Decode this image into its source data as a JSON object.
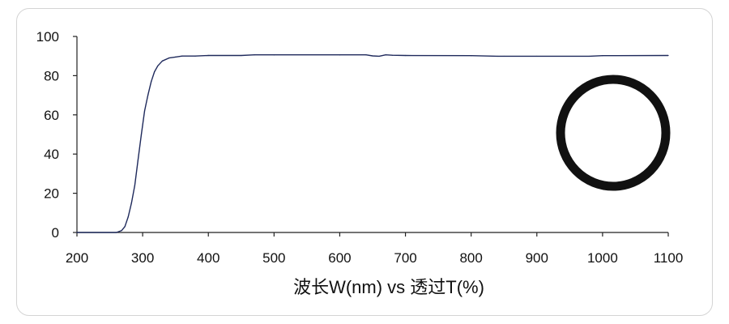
{
  "chart_data": {
    "type": "line",
    "xlabel": "波长W(nm) vs 透过T(%)",
    "ylabel": "",
    "xlim": [
      200,
      1100
    ],
    "ylim": [
      0,
      100
    ],
    "x_ticks": [
      200,
      300,
      400,
      500,
      600,
      700,
      800,
      900,
      1000,
      1100
    ],
    "y_ticks": [
      0,
      20,
      40,
      60,
      80,
      100
    ],
    "x_tick_labels": [
      "200",
      "300",
      "400",
      "500",
      "600",
      "700",
      "800",
      "900",
      "1000",
      "1100"
    ],
    "y_tick_labels": [
      "0",
      "20",
      "40",
      "60",
      "80",
      "100"
    ],
    "grid": false,
    "line_color": "#1f2a5c",
    "series": [
      {
        "x": [
          200,
          260,
          268,
          273,
          278,
          283,
          288,
          293,
          298,
          303,
          308,
          313,
          318,
          323,
          330,
          340,
          350,
          360,
          380,
          400,
          450,
          470,
          500,
          600,
          640,
          650,
          660,
          670,
          680,
          700,
          800,
          840,
          850,
          900,
          980,
          1000,
          1100
        ],
        "y": [
          0,
          0,
          1,
          3,
          8,
          15,
          24,
          37,
          50,
          62,
          70,
          77,
          82,
          85,
          87.5,
          89,
          89.5,
          90,
          90,
          90.3,
          90.3,
          90.6,
          90.6,
          90.6,
          90.6,
          90.1,
          89.9,
          90.6,
          90.4,
          90.3,
          90.2,
          89.9,
          89.9,
          89.9,
          89.9,
          90.2,
          90.3
        ]
      }
    ]
  },
  "inset_image": {
    "icon": "ring-icon",
    "ring_color": "#111111"
  }
}
